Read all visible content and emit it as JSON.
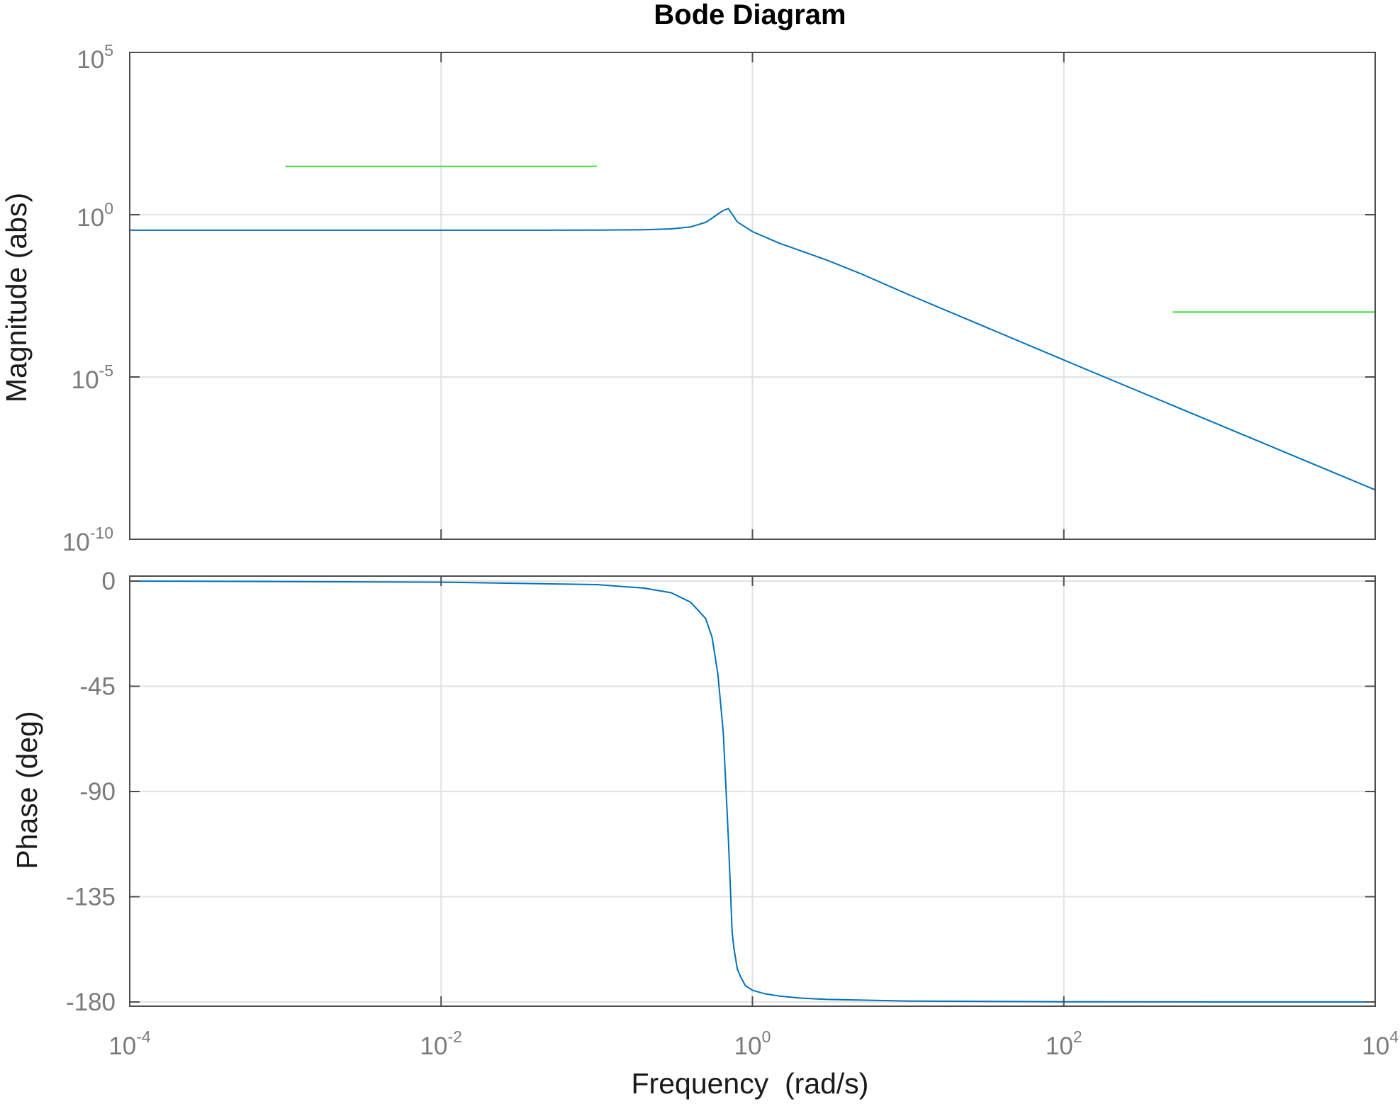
{
  "chart_data": [
    {
      "type": "line",
      "panel": "magnitude",
      "title": "Bode Diagram",
      "ylabel": "Magnitude (abs)",
      "xlabel": "",
      "xscale": "log",
      "yscale": "log",
      "xlim": [
        0.0001,
        10000
      ],
      "ylim": [
        1e-10,
        100000
      ],
      "grid": true,
      "x_ticks": [
        {
          "base": "10",
          "exp": "-4"
        },
        {
          "base": "10",
          "exp": "-2"
        },
        {
          "base": "10",
          "exp": "0"
        },
        {
          "base": "10",
          "exp": "2"
        },
        {
          "base": "10",
          "exp": "4"
        }
      ],
      "y_ticks": [
        {
          "base": "10",
          "exp": "5"
        },
        {
          "base": "10",
          "exp": "0"
        },
        {
          "base": "10",
          "exp": "-5"
        },
        {
          "base": "10",
          "exp": "-10"
        }
      ],
      "series": [
        {
          "color": "#0072bd",
          "x": [
            0.0001,
            0.001,
            0.01,
            0.1,
            0.2,
            0.3,
            0.4,
            0.5,
            0.55,
            0.6,
            0.65,
            0.7,
            0.8,
            1,
            1.5,
            2,
            3,
            5,
            10,
            100,
            1000,
            10000
          ],
          "y": [
            0.333,
            0.333,
            0.333,
            0.335,
            0.345,
            0.365,
            0.42,
            0.58,
            0.78,
            1.05,
            1.35,
            1.55,
            0.6,
            0.3,
            0.13,
            0.08,
            0.04,
            0.015,
            0.0035,
            3.33e-05,
            3.33e-07,
            3.33e-09
          ]
        },
        {
          "color": "#33e033",
          "x": [
            0.001,
            0.1
          ],
          "y": [
            31,
            31
          ]
        },
        {
          "color": "#33e033",
          "x": [
            500,
            10000
          ],
          "y": [
            0.001,
            0.001
          ]
        }
      ]
    },
    {
      "type": "line",
      "panel": "phase",
      "ylabel": "Phase (deg)",
      "xlabel": "Frequency  (rad/s)",
      "xscale": "log",
      "xlim": [
        0.0001,
        10000
      ],
      "ylim": [
        -182,
        2
      ],
      "grid": true,
      "x_ticks": [
        {
          "base": "10",
          "exp": "-4"
        },
        {
          "base": "10",
          "exp": "-2"
        },
        {
          "base": "10",
          "exp": "0"
        },
        {
          "base": "10",
          "exp": "2"
        },
        {
          "base": "10",
          "exp": "4"
        }
      ],
      "y_ticks": [
        "0",
        "-45",
        "-90",
        "-135",
        "-180"
      ],
      "y_tick_values": [
        0,
        -45,
        -90,
        -135,
        -180
      ],
      "series": [
        {
          "color": "#0072bd",
          "x": [
            0.0001,
            0.001,
            0.01,
            0.1,
            0.2,
            0.3,
            0.4,
            0.5,
            0.55,
            0.6,
            0.65,
            0.7,
            0.72,
            0.74,
            0.76,
            0.8,
            0.85,
            0.9,
            1,
            1.2,
            1.5,
            2,
            3,
            10,
            100,
            1000,
            10000
          ],
          "y": [
            -0.02,
            -0.2,
            -0.5,
            -1.5,
            -3,
            -5,
            -9,
            -16,
            -24,
            -40,
            -65,
            -110,
            -130,
            -150,
            -157,
            -166,
            -170,
            -173,
            -175,
            -176.5,
            -177.5,
            -178.3,
            -178.9,
            -179.6,
            -179.9,
            -180,
            -180
          ]
        }
      ]
    }
  ]
}
